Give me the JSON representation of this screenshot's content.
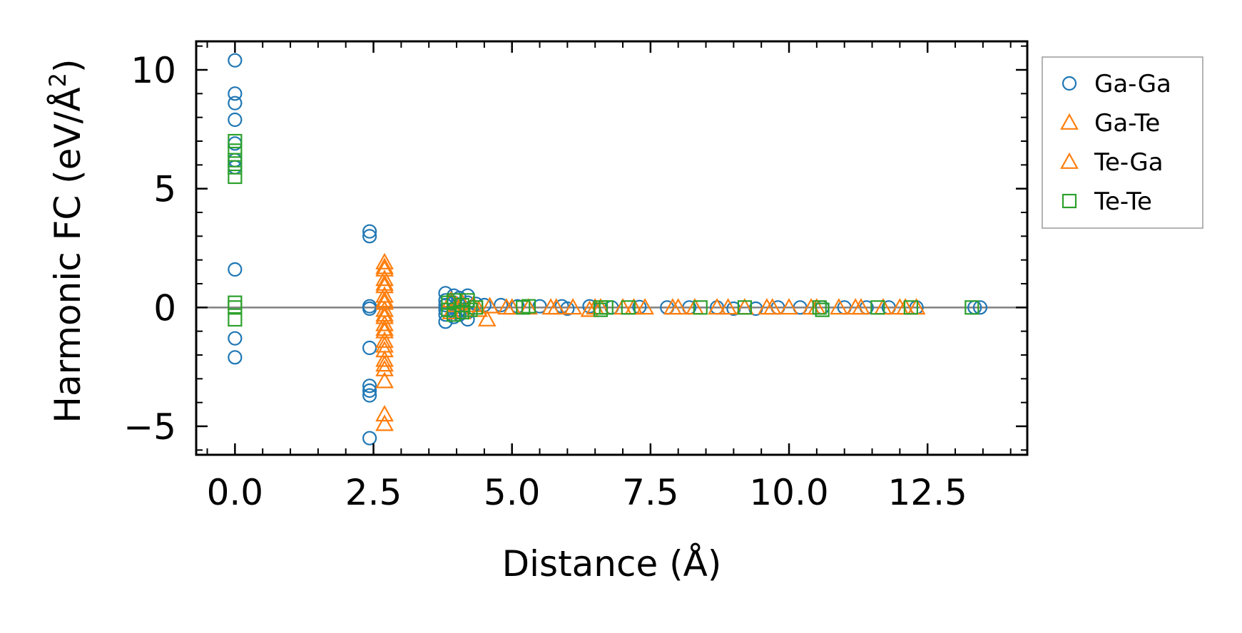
{
  "chart_data": {
    "type": "scatter",
    "title": "",
    "xlabel": "Distance (Å)",
    "ylabel": "Harmonic FC (eV/Å",
    "ylabel_superscript": "2",
    "ylabel_close": ")",
    "xlim": [
      -0.7,
      14.3
    ],
    "ylim": [
      -6.2,
      11.2
    ],
    "xticks": [
      0.0,
      2.5,
      5.0,
      7.5,
      10.0,
      12.5
    ],
    "xtick_labels": [
      "0.0",
      "2.5",
      "5.0",
      "7.5",
      "10.0",
      "12.5"
    ],
    "yticks": [
      -5,
      0,
      5,
      10
    ],
    "ytick_labels": [
      "−5",
      "0",
      "5",
      "10"
    ],
    "hline": 0,
    "legend_position": "outside-right-top",
    "series": [
      {
        "name": "Ga-Ga",
        "marker": "circle",
        "color": "#1f77b4",
        "points": [
          [
            0.0,
            10.4
          ],
          [
            0.0,
            9.0
          ],
          [
            0.0,
            8.6
          ],
          [
            0.0,
            7.9
          ],
          [
            0.0,
            6.9
          ],
          [
            0.0,
            6.2
          ],
          [
            0.0,
            5.9
          ],
          [
            0.0,
            1.6
          ],
          [
            0.0,
            -1.3
          ],
          [
            0.0,
            -2.1
          ],
          [
            2.43,
            3.2
          ],
          [
            2.43,
            3.0
          ],
          [
            2.43,
            0.05
          ],
          [
            2.43,
            -0.05
          ],
          [
            2.43,
            -1.7
          ],
          [
            2.43,
            -3.3
          ],
          [
            2.43,
            -3.5
          ],
          [
            2.43,
            -3.7
          ],
          [
            2.43,
            -5.5
          ],
          [
            3.8,
            0.6
          ],
          [
            3.8,
            0.3
          ],
          [
            3.8,
            0.1
          ],
          [
            3.8,
            -0.1
          ],
          [
            3.8,
            -0.3
          ],
          [
            3.8,
            -0.6
          ],
          [
            3.95,
            0.5
          ],
          [
            3.95,
            0.2
          ],
          [
            3.95,
            -0.2
          ],
          [
            3.95,
            -0.4
          ],
          [
            4.05,
            0.4
          ],
          [
            4.05,
            0.1
          ],
          [
            4.05,
            -0.1
          ],
          [
            4.05,
            -0.3
          ],
          [
            4.2,
            0.5
          ],
          [
            4.2,
            0.2
          ],
          [
            4.2,
            -0.2
          ],
          [
            4.2,
            -0.5
          ],
          [
            4.35,
            0.15
          ],
          [
            4.5,
            0.1
          ],
          [
            4.8,
            0.1
          ],
          [
            5.1,
            0.05
          ],
          [
            5.5,
            0.05
          ],
          [
            5.9,
            0.05
          ],
          [
            6.0,
            -0.05
          ],
          [
            6.4,
            0.05
          ],
          [
            6.8,
            0.0
          ],
          [
            7.3,
            0.02
          ],
          [
            7.8,
            0.0
          ],
          [
            8.2,
            0.0
          ],
          [
            8.7,
            0.0
          ],
          [
            9.0,
            -0.05
          ],
          [
            9.4,
            -0.05
          ],
          [
            9.8,
            0.0
          ],
          [
            10.2,
            0.0
          ],
          [
            10.6,
            0.0
          ],
          [
            11.0,
            0.0
          ],
          [
            11.4,
            0.0
          ],
          [
            11.8,
            0.0
          ],
          [
            12.3,
            0.0
          ],
          [
            13.35,
            0.0
          ],
          [
            13.45,
            0.0
          ]
        ]
      },
      {
        "name": "Ga-Te",
        "marker": "triangle",
        "color": "#ff7f0e",
        "points": [
          [
            2.7,
            1.9
          ],
          [
            2.7,
            1.6
          ],
          [
            2.7,
            1.2
          ],
          [
            2.7,
            0.9
          ],
          [
            2.7,
            0.5
          ],
          [
            2.7,
            0.2
          ],
          [
            2.7,
            -0.1
          ],
          [
            2.7,
            -0.4
          ],
          [
            2.7,
            -0.7
          ],
          [
            2.7,
            -1.0
          ],
          [
            2.7,
            -1.4
          ],
          [
            2.7,
            -1.8
          ],
          [
            2.7,
            -2.2
          ],
          [
            2.7,
            -2.6
          ],
          [
            2.7,
            -3.1
          ],
          [
            2.7,
            -4.5
          ],
          [
            2.7,
            -4.9
          ],
          [
            3.9,
            0.3
          ],
          [
            3.9,
            -0.2
          ],
          [
            4.1,
            0.2
          ],
          [
            4.1,
            -0.2
          ],
          [
            4.3,
            0.1
          ],
          [
            4.55,
            -0.5
          ],
          [
            4.6,
            0.05
          ],
          [
            4.9,
            0.0
          ],
          [
            5.3,
            0.0
          ],
          [
            5.7,
            0.0
          ],
          [
            6.1,
            0.0
          ],
          [
            6.4,
            -0.1
          ],
          [
            6.6,
            0.0
          ],
          [
            7.0,
            0.0
          ],
          [
            7.4,
            0.0
          ],
          [
            7.9,
            0.0
          ],
          [
            8.3,
            0.0
          ],
          [
            8.7,
            0.0
          ],
          [
            9.2,
            0.0
          ],
          [
            9.6,
            0.0
          ],
          [
            10.0,
            0.0
          ],
          [
            10.5,
            0.0
          ],
          [
            10.9,
            0.0
          ],
          [
            11.3,
            0.0
          ],
          [
            11.7,
            0.0
          ],
          [
            12.1,
            0.0
          ],
          [
            12.3,
            0.0
          ]
        ]
      },
      {
        "name": "Te-Ga",
        "marker": "triangle",
        "color": "#ff7f0e",
        "points": [
          [
            2.7,
            1.7
          ],
          [
            2.7,
            1.0
          ],
          [
            2.7,
            0.3
          ],
          [
            2.7,
            -0.3
          ],
          [
            2.7,
            -0.9
          ],
          [
            2.7,
            -1.6
          ],
          [
            2.7,
            -2.4
          ],
          [
            4.0,
            0.1
          ],
          [
            4.4,
            -0.1
          ],
          [
            5.0,
            0.0
          ],
          [
            5.8,
            0.0
          ],
          [
            6.5,
            0.0
          ],
          [
            7.2,
            0.0
          ],
          [
            8.0,
            0.0
          ],
          [
            8.9,
            0.0
          ],
          [
            9.7,
            0.0
          ],
          [
            10.4,
            0.0
          ],
          [
            11.2,
            0.0
          ],
          [
            12.0,
            0.0
          ]
        ]
      },
      {
        "name": "Te-Te",
        "marker": "square",
        "color": "#2ca02c",
        "points": [
          [
            0.0,
            7.0
          ],
          [
            0.0,
            6.6
          ],
          [
            0.0,
            6.2
          ],
          [
            0.0,
            5.9
          ],
          [
            0.0,
            5.5
          ],
          [
            0.0,
            0.2
          ],
          [
            0.0,
            0.0
          ],
          [
            0.0,
            -0.5
          ],
          [
            3.85,
            0.2
          ],
          [
            3.85,
            -0.1
          ],
          [
            3.95,
            0.3
          ],
          [
            3.95,
            -0.3
          ],
          [
            4.1,
            0.1
          ],
          [
            4.1,
            -0.2
          ],
          [
            4.2,
            0.3
          ],
          [
            4.25,
            -0.1
          ],
          [
            4.35,
            0.0
          ],
          [
            5.2,
            0.0
          ],
          [
            5.3,
            0.05
          ],
          [
            6.6,
            0.0
          ],
          [
            6.6,
            -0.1
          ],
          [
            6.7,
            0.0
          ],
          [
            7.1,
            0.0
          ],
          [
            8.4,
            0.0
          ],
          [
            9.2,
            0.0
          ],
          [
            10.55,
            0.0
          ],
          [
            10.6,
            -0.1
          ],
          [
            11.6,
            0.0
          ],
          [
            12.2,
            0.0
          ],
          [
            13.3,
            0.0
          ]
        ]
      }
    ]
  }
}
